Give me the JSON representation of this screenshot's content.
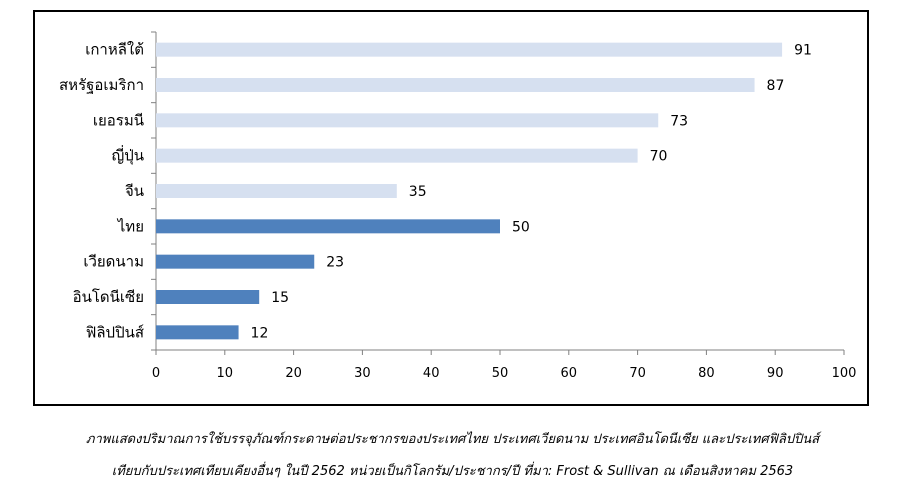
{
  "chart_data": {
    "type": "bar",
    "orientation": "horizontal",
    "categories": [
      "เกาหลีใต้",
      "สหรัฐอเมริกา",
      "เยอรมนี",
      "ญี่ปุ่น",
      "จีน",
      "ไทย",
      "เวียดนาม",
      "อินโดนีเซีย",
      "ฟิลิปปินส์"
    ],
    "values": [
      91,
      87,
      73,
      70,
      35,
      50,
      23,
      15,
      12
    ],
    "bar_colors": [
      "#d6e0f0",
      "#d6e0f0",
      "#d6e0f0",
      "#d6e0f0",
      "#d6e0f0",
      "#4f81bd",
      "#4f81bd",
      "#4f81bd",
      "#4f81bd"
    ],
    "xlim": [
      0,
      100
    ],
    "xticks": [
      0,
      10,
      20,
      30,
      40,
      50,
      60,
      70,
      80,
      90,
      100
    ],
    "data_labels": true,
    "grid": false,
    "legend": "none"
  },
  "caption": {
    "line1": "ภาพแสดงปริมาณการใช้บรรจุภัณฑ์กระดาษต่อประชากรของประเทศไทย ประเทศเวียดนาม ประเทศอินโดนีเซีย และประเทศฟิลิปปินส์",
    "line2": "เทียบกับประเทศเทียบเคียงอื่นๆ ในปี 2562 หน่วยเป็นกิโลกรัม/ประชากร/ปี ที่มา: Frost & Sullivan ณ เดือนสิงหาคม 2563"
  }
}
